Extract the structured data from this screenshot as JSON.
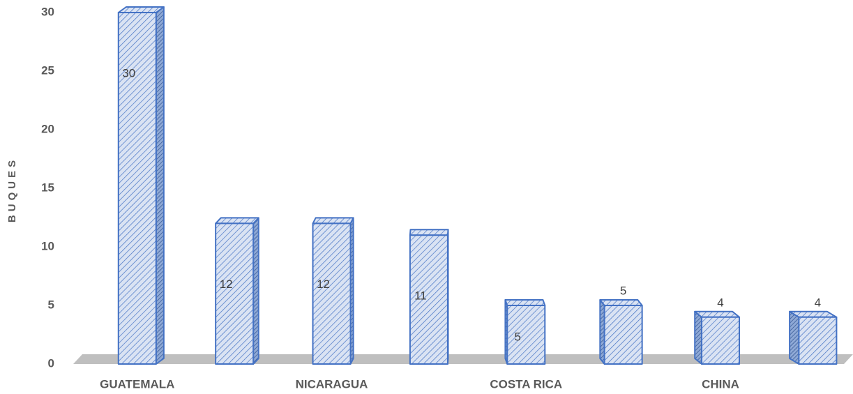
{
  "chart_data": {
    "type": "bar3d",
    "y_label": "BUQUES",
    "categories": [
      "GUATEMALA",
      null,
      "NICARAGUA",
      null,
      "COSTA RICA",
      null,
      "CHINA",
      null
    ],
    "values": [
      30,
      12,
      12,
      11,
      5,
      5,
      4,
      4
    ],
    "color": "#dae3f3",
    "edge_color": "#4472c4",
    "ylim": [
      0,
      30
    ],
    "yticks": [
      0,
      5,
      10,
      15,
      20,
      25,
      30
    ]
  }
}
